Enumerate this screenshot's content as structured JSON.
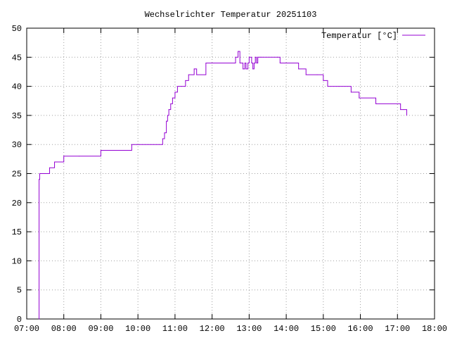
{
  "chart_data": {
    "type": "line",
    "title": "Wechselrichter Temperatur 20251103",
    "xlabel": "",
    "ylabel": "",
    "xlim": [
      "07:00",
      "18:00"
    ],
    "ylim": [
      0,
      50
    ],
    "grid": true,
    "legend_position": "top-right",
    "x_ticks": [
      "07:00",
      "08:00",
      "09:00",
      "10:00",
      "11:00",
      "12:00",
      "13:00",
      "14:00",
      "15:00",
      "16:00",
      "17:00",
      "18:00"
    ],
    "y_ticks": [
      "0",
      "5",
      "10",
      "15",
      "20",
      "25",
      "30",
      "35",
      "40",
      "45",
      "50"
    ],
    "series": [
      {
        "name": "Temperatur [°C]",
        "color": "#9400d3",
        "step": true,
        "x": [
          "07:20",
          "07:20",
          "07:21",
          "07:27",
          "07:37",
          "07:45",
          "08:00",
          "08:25",
          "09:00",
          "09:50",
          "10:40",
          "10:43",
          "10:46",
          "10:48",
          "10:50",
          "10:53",
          "10:56",
          "11:00",
          "11:04",
          "11:10",
          "11:17",
          "11:22",
          "11:31",
          "11:32",
          "11:35",
          "11:50",
          "12:38",
          "12:42",
          "12:45",
          "12:50",
          "12:53",
          "12:55",
          "12:58",
          "13:00",
          "13:04",
          "13:06",
          "13:08",
          "13:10",
          "13:12",
          "13:14",
          "13:16",
          "13:20",
          "13:46",
          "13:50",
          "14:07",
          "14:20",
          "14:32",
          "14:50",
          "15:00",
          "15:07",
          "15:25",
          "15:45",
          "15:58",
          "16:25",
          "17:05",
          "17:10",
          "17:15"
        ],
        "y": [
          0,
          24,
          25,
          25,
          26,
          27,
          28,
          28,
          29,
          30,
          31,
          32,
          34,
          35,
          36,
          37,
          38,
          39,
          40,
          40,
          41,
          42,
          43,
          43,
          42,
          44,
          45,
          46,
          44,
          43,
          44,
          43,
          44,
          45,
          44,
          43,
          44,
          45,
          44,
          45,
          45,
          45,
          45,
          44,
          44,
          43,
          42,
          42,
          41,
          40,
          40,
          39,
          38,
          37,
          36,
          36,
          35
        ]
      }
    ]
  }
}
